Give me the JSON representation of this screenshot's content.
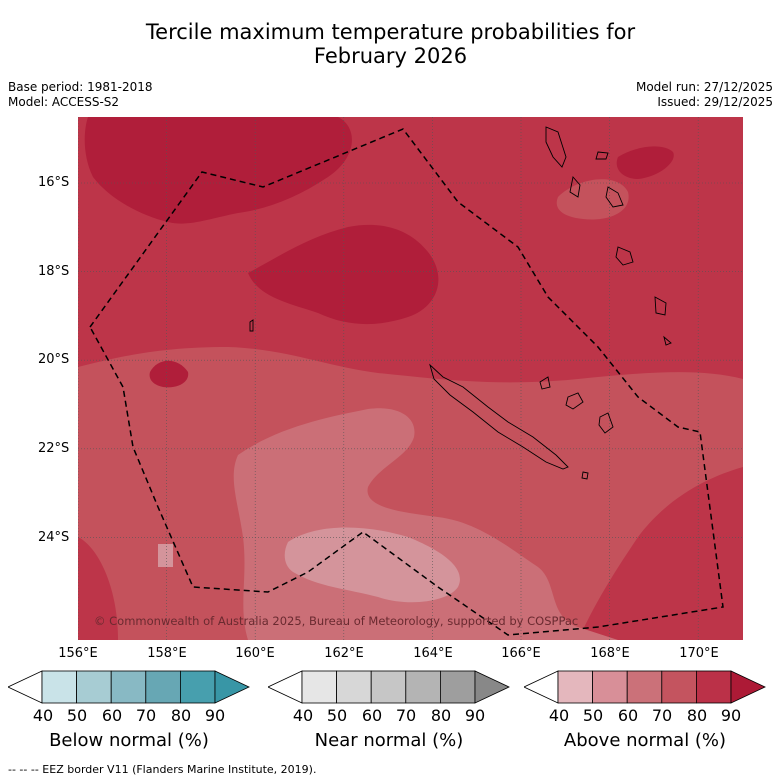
{
  "title_line1": "Tercile maximum temperature probabilities for",
  "title_line2": "February 2026",
  "base_period": "Base period: 1981-2018",
  "model": "Model: ACCESS-S2",
  "model_run": "Model run: 27/12/2025",
  "issued": "Issued: 29/12/2025",
  "lat_labels": [
    "16°S",
    "18°S",
    "20°S",
    "22°S",
    "24°S"
  ],
  "lon_labels": [
    "156°E",
    "158°E",
    "160°E",
    "162°E",
    "164°E",
    "166°E",
    "168°E",
    "170°E"
  ],
  "copyright": "© Commonwealth of Australia 2025, Bureau of Meteorology, supported by COSPPac",
  "colorbars": {
    "ticks": [
      "40",
      "50",
      "60",
      "70",
      "80",
      "90"
    ],
    "below": {
      "label": "Below normal (%)",
      "colors": [
        "#ffffff",
        "#c9e3e8",
        "#a7ccd3",
        "#88b9c4",
        "#67a7b4",
        "#479fae",
        "#3896a6"
      ]
    },
    "near": {
      "label": "Near normal (%)",
      "colors": [
        "#ffffff",
        "#e6e6e6",
        "#d7d7d7",
        "#c6c6c6",
        "#b4b4b4",
        "#9e9e9e",
        "#888888"
      ]
    },
    "above": {
      "label": "Above normal (%)",
      "colors": [
        "#ffffff",
        "#e4b7bd",
        "#d88f98",
        "#cb7179",
        "#c4545f",
        "#bb3148",
        "#ad1a36"
      ]
    }
  },
  "footnote": "-- -- -- EEZ border V11 (Flanders Marine Institute, 2019).",
  "map_colors": {
    "p90": "#b01e3a",
    "p80": "#bd3549",
    "p70": "#c4525c",
    "p60": "#cb6f77",
    "p50": "#d4949b"
  }
}
